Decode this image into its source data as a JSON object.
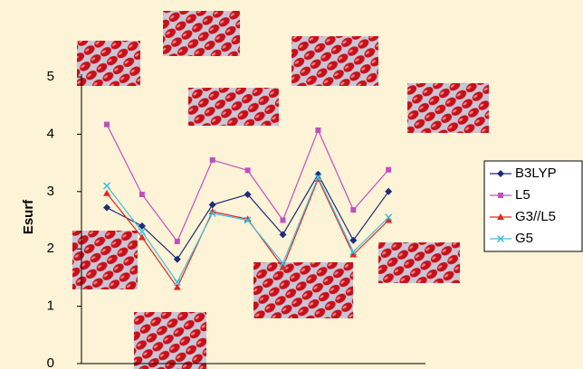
{
  "chart_data": {
    "type": "line",
    "y_label": "Esurf",
    "categories": [
      null,
      null,
      null,
      null,
      null,
      null,
      null,
      null,
      null
    ],
    "series": [
      {
        "name": "B3LYP",
        "color": "#1f2c7a",
        "marker": "diamond",
        "values": [
          2.72,
          2.4,
          1.82,
          2.77,
          2.95,
          2.25,
          3.3,
          2.15,
          3.0
        ]
      },
      {
        "name": "L5",
        "color": "#c04fc0",
        "marker": "square",
        "values": [
          4.17,
          2.95,
          2.13,
          3.55,
          3.37,
          2.5,
          4.07,
          2.68,
          3.38
        ]
      },
      {
        "name": "G3//L5",
        "color": "#e02a20",
        "marker": "triangle",
        "values": [
          2.97,
          2.2,
          1.33,
          2.65,
          2.52,
          1.68,
          3.22,
          1.9,
          2.5
        ]
      },
      {
        "name": "G5",
        "color": "#3fbfe0",
        "marker": "x",
        "values": [
          3.1,
          2.3,
          1.42,
          2.62,
          2.5,
          1.75,
          3.25,
          1.95,
          2.55
        ]
      }
    ],
    "ylim": [
      0,
      5
    ],
    "yticks": [
      0,
      1,
      2,
      3,
      4,
      5
    ],
    "grid": false,
    "legend": "right"
  }
}
